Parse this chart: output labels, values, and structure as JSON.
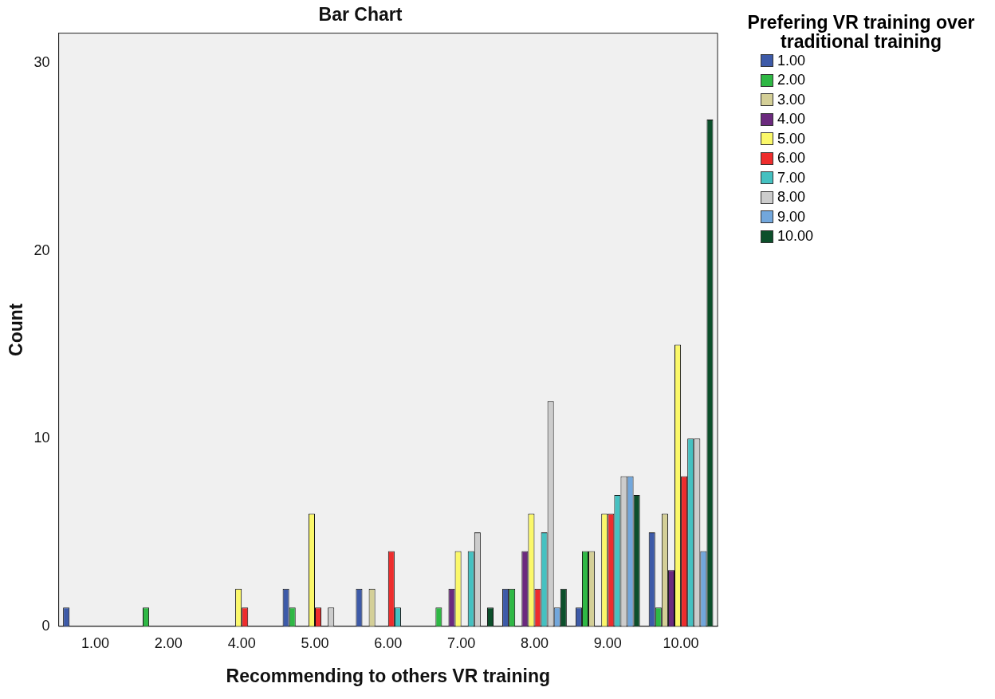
{
  "chart_data": {
    "type": "bar",
    "title": "Bar Chart",
    "xlabel": "Recommending to others VR training",
    "ylabel": "Count",
    "legend_title": "Prefering VR training over traditional training",
    "legend": "top right",
    "grid": false,
    "categories": [
      "1.00",
      "2.00",
      "4.00",
      "5.00",
      "6.00",
      "7.00",
      "8.00",
      "9.00",
      "10.00"
    ],
    "ylim": [
      0,
      31.6
    ],
    "yticks": [
      0,
      10,
      20,
      30
    ],
    "series": [
      {
        "name": "1.00",
        "color": "#3d5aa8",
        "values": [
          1,
          0,
          0,
          2,
          2,
          0,
          2,
          1,
          5
        ]
      },
      {
        "name": "2.00",
        "color": "#2fb845",
        "values": [
          0,
          1,
          0,
          1,
          0,
          1,
          2,
          4,
          1
        ]
      },
      {
        "name": "3.00",
        "color": "#d4cf97",
        "values": [
          0,
          0,
          0,
          0,
          2,
          0,
          0,
          4,
          6
        ]
      },
      {
        "name": "4.00",
        "color": "#6b2a7e",
        "values": [
          0,
          0,
          0,
          0,
          0,
          2,
          4,
          0,
          3
        ]
      },
      {
        "name": "5.00",
        "color": "#fbf86a",
        "values": [
          0,
          0,
          2,
          6,
          0,
          4,
          6,
          6,
          15
        ]
      },
      {
        "name": "6.00",
        "color": "#ee2d2d",
        "values": [
          0,
          0,
          1,
          1,
          4,
          0,
          2,
          6,
          8
        ]
      },
      {
        "name": "7.00",
        "color": "#45c1c1",
        "values": [
          0,
          0,
          0,
          0,
          1,
          4,
          5,
          7,
          10
        ]
      },
      {
        "name": "8.00",
        "color": "#cccccc",
        "values": [
          0,
          0,
          0,
          1,
          0,
          5,
          12,
          8,
          10
        ]
      },
      {
        "name": "9.00",
        "color": "#72a7dc",
        "values": [
          0,
          0,
          0,
          0,
          0,
          0,
          1,
          8,
          4
        ]
      },
      {
        "name": "10.00",
        "color": "#0c4f2b",
        "values": [
          0,
          0,
          0,
          0,
          0,
          1,
          2,
          7,
          27
        ]
      }
    ]
  }
}
